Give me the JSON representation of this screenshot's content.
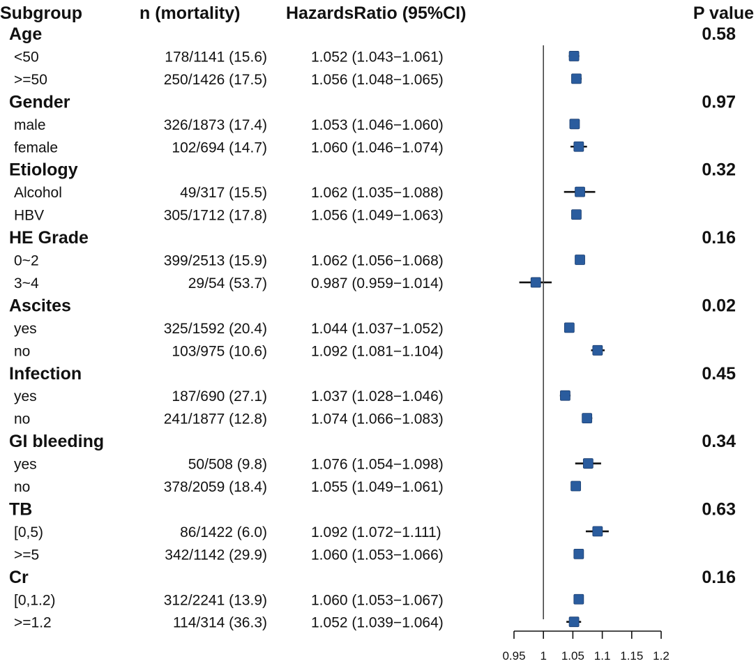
{
  "chart_data": {
    "type": "forest",
    "headers": {
      "subgroup": "Subgroup",
      "n": "n (mortality)",
      "hr": "HazardsRatio (95%CI)",
      "p": "P value"
    },
    "reference_line": 1,
    "xlim": [
      0.95,
      1.2
    ],
    "ticks": [
      0.95,
      1,
      1.05,
      1.1,
      1.15,
      1.2
    ],
    "tick_labels": [
      "0.95",
      "1",
      "1.05",
      "1.1",
      "1.15",
      "1.2"
    ],
    "marker_color": "#2a5c9e",
    "groups": [
      {
        "name": "Age",
        "p": "0.58",
        "rows": [
          {
            "label": "<50",
            "n": "178/1141 (15.6)",
            "hr_text": "1.052 (1.043−1.061)",
            "hr": 1.052,
            "lo": 1.043,
            "hi": 1.061
          },
          {
            "label": ">=50",
            "n": "250/1426 (17.5)",
            "hr_text": "1.056 (1.048−1.065)",
            "hr": 1.056,
            "lo": 1.048,
            "hi": 1.065
          }
        ]
      },
      {
        "name": "Gender",
        "p": "0.97",
        "rows": [
          {
            "label": "male",
            "n": "326/1873 (17.4)",
            "hr_text": "1.053 (1.046−1.060)",
            "hr": 1.053,
            "lo": 1.046,
            "hi": 1.06
          },
          {
            "label": "female",
            "n": "102/694 (14.7)",
            "hr_text": "1.060 (1.046−1.074)",
            "hr": 1.06,
            "lo": 1.046,
            "hi": 1.074
          }
        ]
      },
      {
        "name": "Etiology",
        "p": "0.32",
        "rows": [
          {
            "label": "Alcohol",
            "n": "49/317 (15.5)",
            "hr_text": "1.062 (1.035−1.088)",
            "hr": 1.062,
            "lo": 1.035,
            "hi": 1.088
          },
          {
            "label": "HBV",
            "n": "305/1712 (17.8)",
            "hr_text": "1.056 (1.049−1.063)",
            "hr": 1.056,
            "lo": 1.049,
            "hi": 1.063
          }
        ]
      },
      {
        "name": "HE Grade",
        "p": "0.16",
        "rows": [
          {
            "label": "0~2",
            "n": "399/2513 (15.9)",
            "hr_text": "1.062 (1.056−1.068)",
            "hr": 1.062,
            "lo": 1.056,
            "hi": 1.068
          },
          {
            "label": "3~4",
            "n": "29/54 (53.7)",
            "hr_text": "0.987 (0.959−1.014)",
            "hr": 0.987,
            "lo": 0.959,
            "hi": 1.014
          }
        ]
      },
      {
        "name": "Ascites",
        "p": "0.02",
        "rows": [
          {
            "label": "yes",
            "n": "325/1592 (20.4)",
            "hr_text": "1.044 (1.037−1.052)",
            "hr": 1.044,
            "lo": 1.037,
            "hi": 1.052
          },
          {
            "label": "no",
            "n": "103/975 (10.6)",
            "hr_text": "1.092 (1.081−1.104)",
            "hr": 1.092,
            "lo": 1.081,
            "hi": 1.104
          }
        ]
      },
      {
        "name": "Infection",
        "p": "0.45",
        "rows": [
          {
            "label": "yes",
            "n": "187/690 (27.1)",
            "hr_text": "1.037 (1.028−1.046)",
            "hr": 1.037,
            "lo": 1.028,
            "hi": 1.046
          },
          {
            "label": "no",
            "n": "241/1877 (12.8)",
            "hr_text": "1.074 (1.066−1.083)",
            "hr": 1.074,
            "lo": 1.066,
            "hi": 1.083
          }
        ]
      },
      {
        "name": "GI bleeding",
        "p": "0.34",
        "rows": [
          {
            "label": "yes",
            "n": "50/508 (9.8)",
            "hr_text": "1.076 (1.054−1.098)",
            "hr": 1.076,
            "lo": 1.054,
            "hi": 1.098
          },
          {
            "label": "no",
            "n": "378/2059 (18.4)",
            "hr_text": "1.055 (1.049−1.061)",
            "hr": 1.055,
            "lo": 1.049,
            "hi": 1.061
          }
        ]
      },
      {
        "name": "TB",
        "p": "0.63",
        "rows": [
          {
            "label": "[0,5)",
            "n": "86/1422 (6.0)",
            "hr_text": "1.092 (1.072−1.111)",
            "hr": 1.092,
            "lo": 1.072,
            "hi": 1.111
          },
          {
            "label": ">=5",
            "n": "342/1142 (29.9)",
            "hr_text": "1.060 (1.053−1.066)",
            "hr": 1.06,
            "lo": 1.053,
            "hi": 1.066
          }
        ]
      },
      {
        "name": "Cr",
        "p": "0.16",
        "rows": [
          {
            "label": "[0,1.2)",
            "n": "312/2241 (13.9)",
            "hr_text": "1.060 (1.053−1.067)",
            "hr": 1.06,
            "lo": 1.053,
            "hi": 1.067
          },
          {
            "label": ">=1.2",
            "n": "114/314 (36.3)",
            "hr_text": "1.052 (1.039−1.064)",
            "hr": 1.052,
            "lo": 1.039,
            "hi": 1.064
          }
        ]
      }
    ]
  }
}
